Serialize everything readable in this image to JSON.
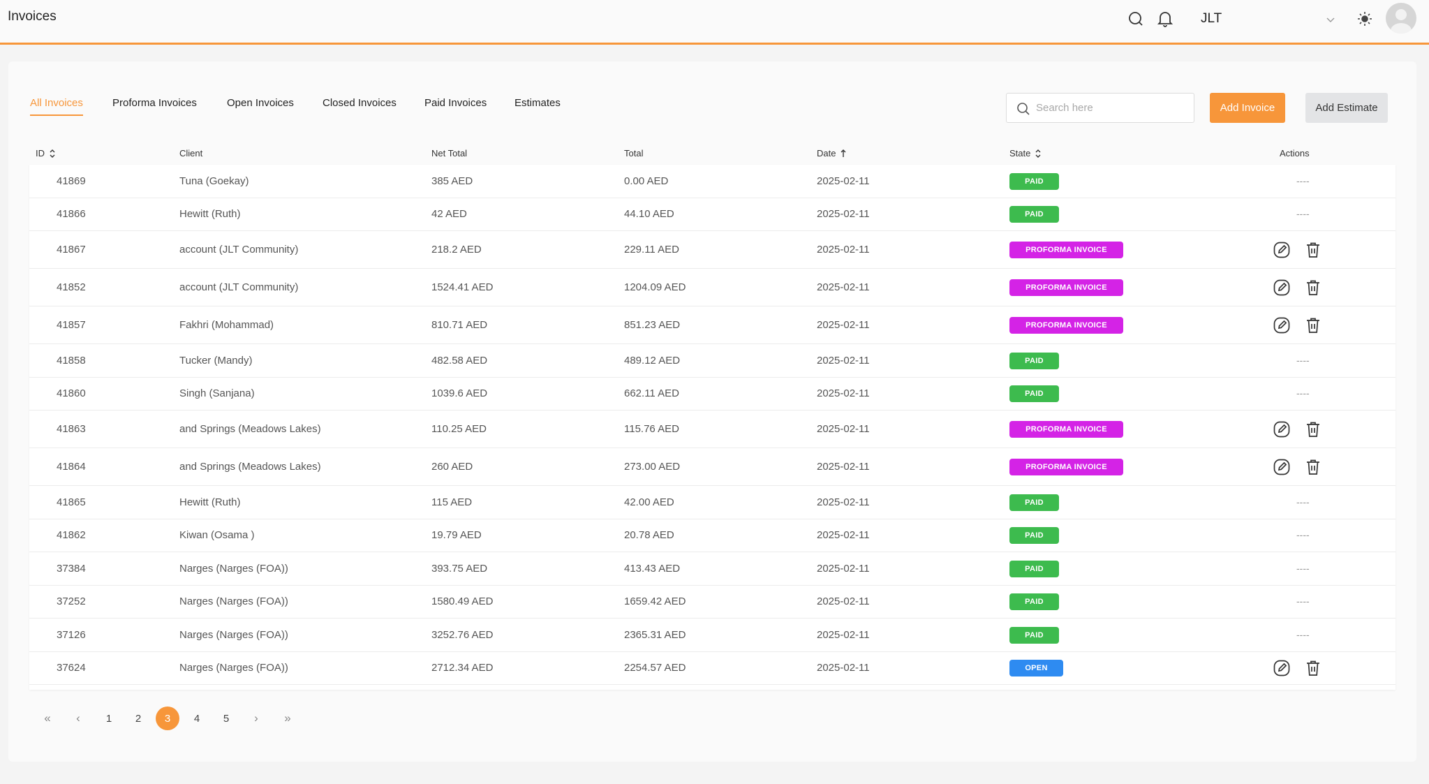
{
  "header": {
    "title": "Invoices",
    "location": "JLT",
    "icons": [
      "search-icon",
      "bell-icon",
      "chevron-down-icon",
      "sun-icon",
      "avatar"
    ]
  },
  "tabs": [
    {
      "label": "All Invoices",
      "active": true
    },
    {
      "label": "Proforma Invoices",
      "active": false
    },
    {
      "label": "Open Invoices",
      "active": false
    },
    {
      "label": "Closed Invoices",
      "active": false
    },
    {
      "label": "Paid Invoices",
      "active": false
    },
    {
      "label": "Estimates",
      "active": false
    }
  ],
  "search": {
    "placeholder": "Search here",
    "value": ""
  },
  "buttons": {
    "add_invoice": "Add Invoice",
    "add_estimate": "Add Estimate"
  },
  "table": {
    "columns": [
      "ID",
      "Client",
      "Net Total",
      "Total",
      "Date",
      "State",
      "Actions"
    ],
    "rows": [
      {
        "id": "41869",
        "client": "Tuna (Goekay)",
        "net_total": "385 AED",
        "total": "0.00 AED",
        "date": "2025-02-11",
        "state": "PAID",
        "actions": "----"
      },
      {
        "id": "41866",
        "client": "Hewitt (Ruth)",
        "net_total": "42 AED",
        "total": "44.10 AED",
        "date": "2025-02-11",
        "state": "PAID",
        "actions": "----"
      },
      {
        "id": "41867",
        "client": "account (JLT Community)",
        "net_total": "218.2 AED",
        "total": "229.11 AED",
        "date": "2025-02-11",
        "state": "PROFORMA INVOICE",
        "actions": "edit-delete"
      },
      {
        "id": "41852",
        "client": "account (JLT Community)",
        "net_total": "1524.41 AED",
        "total": "1204.09 AED",
        "date": "2025-02-11",
        "state": "PROFORMA INVOICE",
        "actions": "edit-delete"
      },
      {
        "id": "41857",
        "client": "Fakhri (Mohammad)",
        "net_total": "810.71 AED",
        "total": "851.23 AED",
        "date": "2025-02-11",
        "state": "PROFORMA INVOICE",
        "actions": "edit-delete"
      },
      {
        "id": "41858",
        "client": "Tucker (Mandy)",
        "net_total": "482.58 AED",
        "total": "489.12 AED",
        "date": "2025-02-11",
        "state": "PAID",
        "actions": "----"
      },
      {
        "id": "41860",
        "client": "Singh (Sanjana)",
        "net_total": "1039.6 AED",
        "total": "662.11 AED",
        "date": "2025-02-11",
        "state": "PAID",
        "actions": "----"
      },
      {
        "id": "41863",
        "client": "and Springs (Meadows Lakes)",
        "net_total": "110.25 AED",
        "total": "115.76 AED",
        "date": "2025-02-11",
        "state": "PROFORMA INVOICE",
        "actions": "edit-delete"
      },
      {
        "id": "41864",
        "client": "and Springs (Meadows Lakes)",
        "net_total": "260 AED",
        "total": "273.00 AED",
        "date": "2025-02-11",
        "state": "PROFORMA INVOICE",
        "actions": "edit-delete"
      },
      {
        "id": "41865",
        "client": "Hewitt (Ruth)",
        "net_total": "115 AED",
        "total": "42.00 AED",
        "date": "2025-02-11",
        "state": "PAID",
        "actions": "----"
      },
      {
        "id": "41862",
        "client": "Kiwan (Osama )",
        "net_total": "19.79 AED",
        "total": "20.78 AED",
        "date": "2025-02-11",
        "state": "PAID",
        "actions": "----"
      },
      {
        "id": "37384",
        "client": "Narges (Narges (FOA))",
        "net_total": "393.75 AED",
        "total": "413.43 AED",
        "date": "2025-02-11",
        "state": "PAID",
        "actions": "----"
      },
      {
        "id": "37252",
        "client": "Narges (Narges (FOA))",
        "net_total": "1580.49 AED",
        "total": "1659.42 AED",
        "date": "2025-02-11",
        "state": "PAID",
        "actions": "----"
      },
      {
        "id": "37126",
        "client": "Narges (Narges (FOA))",
        "net_total": "3252.76 AED",
        "total": "2365.31 AED",
        "date": "2025-02-11",
        "state": "PAID",
        "actions": "----"
      },
      {
        "id": "37624",
        "client": "Narges (Narges (FOA))",
        "net_total": "2712.34 AED",
        "total": "2254.57 AED",
        "date": "2025-02-11",
        "state": "OPEN",
        "actions": "edit-delete"
      }
    ]
  },
  "pagination": {
    "first": "«",
    "prev": "‹",
    "next": "›",
    "last": "»",
    "pages": [
      "1",
      "2",
      "3",
      "4",
      "5"
    ],
    "current": "3"
  },
  "colors": {
    "accent": "#f7963a",
    "paid": "#3dbb4e",
    "proforma": "#d423e6",
    "open": "#2e8bf1"
  }
}
